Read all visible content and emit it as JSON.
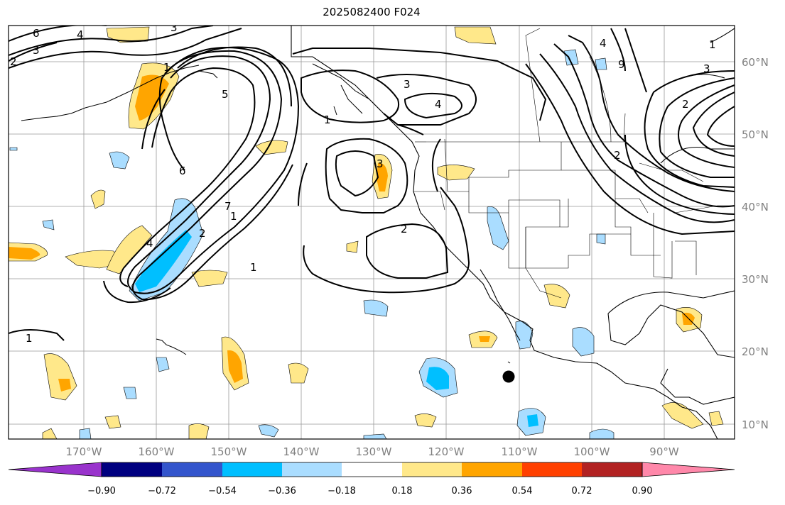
{
  "title": "2025082400 F024",
  "map": {
    "lon_ticks": [
      "170°W",
      "160°W",
      "150°W",
      "140°W",
      "130°W",
      "120°W",
      "110°W",
      "100°W",
      "90°W"
    ],
    "lat_ticks": [
      "60°N",
      "50°N",
      "40°N",
      "30°N",
      "20°N",
      "10°N"
    ],
    "contour_labels": [
      "6",
      "3",
      "2",
      "4",
      "1",
      "5",
      "6",
      "7",
      "1",
      "4",
      "2",
      "3",
      "3",
      "4",
      "2",
      "1",
      "1",
      "1",
      "2",
      "3",
      "2",
      "3",
      "4",
      "9",
      "1"
    ],
    "marker": "storm-center-dot"
  },
  "colorbar": {
    "ticks": [
      "−0.90",
      "−0.72",
      "−0.54",
      "−0.36",
      "−0.18",
      "0.18",
      "0.36",
      "0.54",
      "0.72",
      "0.90"
    ],
    "colors": [
      "#9933cc",
      "#000080",
      "#3355cc",
      "#00bfff",
      "#aaddff",
      "#ffffff",
      "#ffe88a",
      "#ffa500",
      "#ff4000",
      "#b22222",
      "#ff88aa"
    ],
    "extend": "both"
  },
  "colors": {
    "light_blue": "#aaddff",
    "deep_sky_blue": "#00bfff",
    "light_yellow": "#ffe88a",
    "orange": "#ffa500",
    "coast": "#000000",
    "grid": "#999999"
  }
}
